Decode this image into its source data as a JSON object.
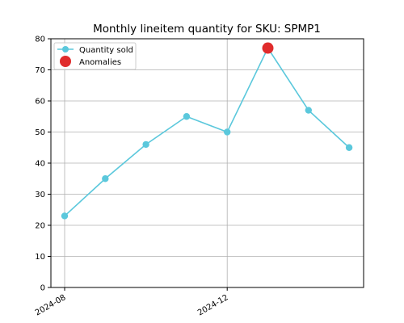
{
  "chart_data": {
    "type": "line",
    "title": "Monthly lineitem quantity for SKU: SPMP1",
    "xlabel": "",
    "ylabel": "",
    "x": [
      "2024-08",
      "2024-09",
      "2024-10",
      "2024-11",
      "2024-12",
      "2025-01",
      "2025-02",
      "2025-03"
    ],
    "series": [
      {
        "name": "Quantity sold",
        "values": [
          23,
          35,
          46,
          55,
          50,
          77,
          57,
          45
        ],
        "color": "#5bc8dc"
      }
    ],
    "anomalies": {
      "name": "Anomalies",
      "x": [
        "2025-01"
      ],
      "values": [
        77
      ],
      "color": "#e02c2c"
    },
    "xticks": [
      "2024-08",
      "2024-12"
    ],
    "yticks": [
      0,
      10,
      20,
      30,
      40,
      50,
      60,
      70,
      80
    ],
    "ylim": [
      0,
      80
    ],
    "grid": true,
    "legend_position": "top-left"
  }
}
